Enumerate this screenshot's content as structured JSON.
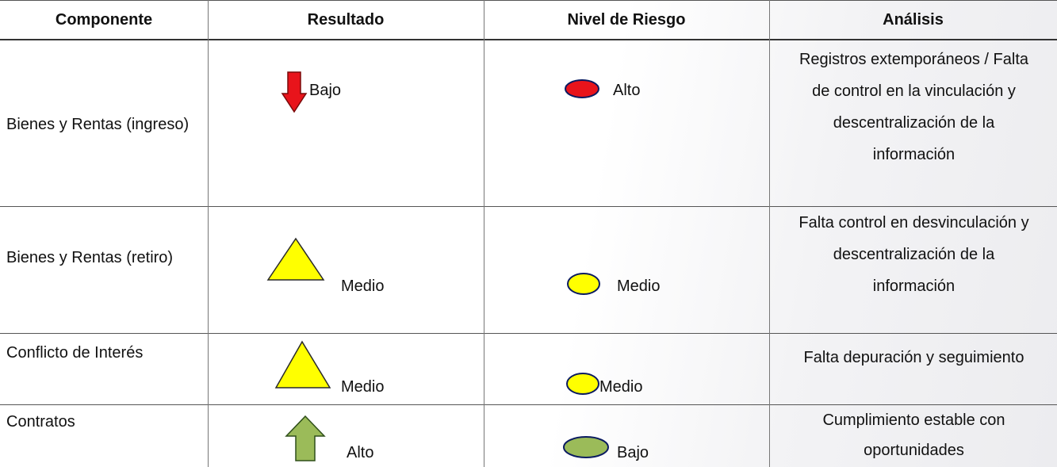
{
  "table": {
    "header": [
      "Componente",
      "Resultado",
      "Nivel de Riesgo",
      "Análisis"
    ],
    "rows": [
      [
        "Bienes y Rentas (ingreso)",
        "Bajo",
        "Alto",
        "Registros extemporáneos / Falta de control en la vinculación y descentralización de la información"
      ],
      [
        "Bienes y Rentas (retiro)",
        "Medio",
        "Medio",
        "Falta control en desvinculación y descentralización de la información"
      ],
      [
        "Conflicto de Interés",
        "Medio",
        "Medio",
        "Falta depuración y seguimiento"
      ],
      [
        "Contratos",
        "Alto",
        "Bajo",
        "Cumplimiento estable con oportunidades"
      ]
    ]
  }
}
